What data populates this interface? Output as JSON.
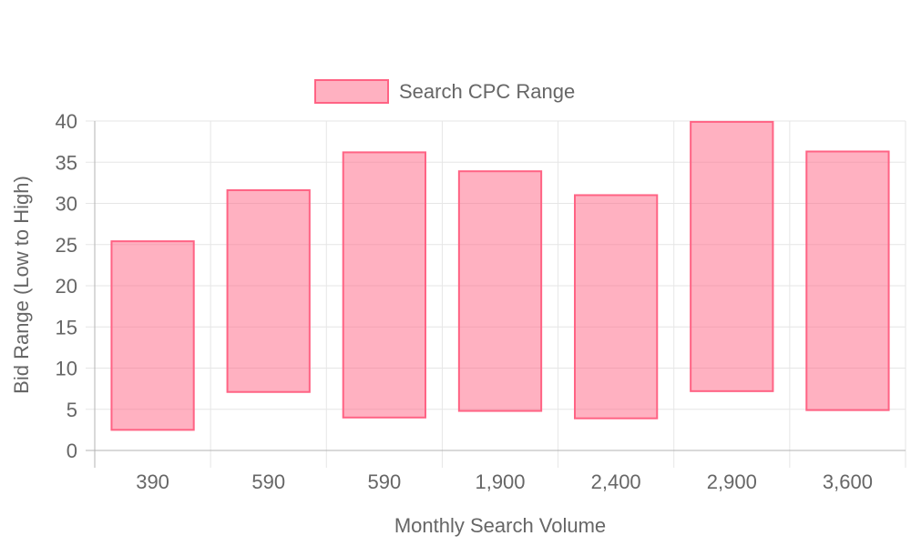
{
  "chart_data": {
    "type": "bar",
    "subtype": "floating-range",
    "categories": [
      "390",
      "590",
      "590",
      "1,900",
      "2,400",
      "2,900",
      "3,600"
    ],
    "series": [
      {
        "name": "Search CPC Range",
        "ranges": [
          [
            2.5,
            25.4
          ],
          [
            7.1,
            31.6
          ],
          [
            4.0,
            36.2
          ],
          [
            4.8,
            33.9
          ],
          [
            3.9,
            31.0
          ],
          [
            7.2,
            39.9
          ],
          [
            4.9,
            36.3
          ]
        ]
      }
    ],
    "xlabel": "Monthly Search Volume",
    "ylabel": "Bid Range (Low to High)",
    "ylim": [
      0,
      40
    ],
    "yticks": [
      0,
      5,
      10,
      15,
      20,
      25,
      30,
      35,
      40
    ],
    "grid": true,
    "legend_position": "top"
  },
  "colors": {
    "bar_fill": "rgba(255, 99, 132, 0.5)",
    "bar_stroke": "#ff6384",
    "grid": "#e6e6e6",
    "axis": "#b3b3b3",
    "text": "#666666"
  }
}
